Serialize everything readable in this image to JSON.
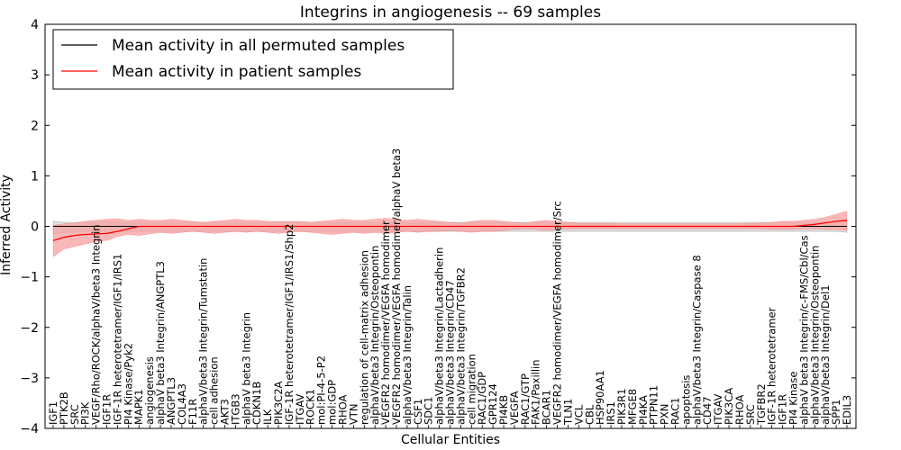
{
  "chart_data": {
    "type": "line",
    "title": "Integrins in angiogenesis -- 69 samples",
    "xlabel": "Cellular Entities",
    "ylabel": "Inferred Activity",
    "ylim": [
      -4,
      4
    ],
    "yticks": [
      "−4",
      "−3",
      "−2",
      "−1",
      "0",
      "1",
      "2",
      "3",
      "4"
    ],
    "legend_position": "top-left",
    "categories": [
      "IGF1",
      "PTK2B",
      "SRC",
      "PI3K",
      "VEGF/Rho/ROCK/alphaV/beta3 Integrin",
      "IGF1R",
      "IGF-1R heterotetramer/IGF1/IRS1",
      "PI4 Kinase/Pyk2",
      "MAPK1",
      "angiogenesis",
      "alphaV beta3 Integrin/ANGPTL3",
      "ANGPTL3",
      "COL4A3",
      "F11R",
      "alphaV/beta3 Integrin/Tumstatin",
      "cell adhesion",
      "AKT3",
      "ITGB3",
      "alphaV beta3 Integrin",
      "CDKN1B",
      "ILK",
      "PIK3C2A",
      "IGF-1R heterotetramer/IGF1/IRS1/Shp2",
      "ITGAV",
      "ROCK1",
      "mol:PI-4-5-P2",
      "mol:GDP",
      "RHOA",
      "VTN",
      "regulation of cell-matrix adhesion",
      "alphaV/beta3 Integrin/Osteopontin",
      "VEGFR2 homodimer/VEGFA homodimer",
      "VEGFR2 homodimer/VEGFA homodimer/alphaV beta3",
      "alphaV/beta3 Integrin/Talin",
      "CSF1",
      "SDC1",
      "alphaV/beta3 Integrin/Lactadherin",
      "alphaV/beta3 Integrin/CD47",
      "alphaV/beta3 Integrin/TGFBR2",
      "cell migration",
      "RAC1/GDP",
      "GPR124",
      "PI4KB",
      "VEGFA",
      "RAC1/GTP",
      "FAK1/Paxillin",
      "BCAR1",
      "VEGFR2 homodimer/VEGFA homodimer/Src",
      "TLN1",
      "VCL",
      "CBL",
      "HSP90AA1",
      "IRS1",
      "PIK3R1",
      "MFGE8",
      "PI4KA",
      "PTPN11",
      "PXN",
      "RAC1",
      "apoptosis",
      "alphaV/beta3 Integrin/Caspase 8",
      "CD47",
      "ITGAV",
      "PIK3CA",
      "RHOA",
      "SRC",
      "TGFBR2",
      "IGF-1R heterotetramer",
      "IGF1R",
      "PI4 Kinase",
      "alphaV beta3 Integrin/c-FMS/Cbl/Cas",
      "alphaV/beta3 Integrin/Osteopontin",
      "alphaV/beta3 Integrin/Del1",
      "SPP1",
      "EDIL3"
    ],
    "series": [
      {
        "name": "Mean activity in all permuted samples",
        "color": "#000000",
        "band_color": "#c8c8c8",
        "mean": [
          0.0,
          0.0,
          0.0,
          0.0,
          0.0,
          0.0,
          0.0,
          0.0,
          0.0,
          0.0,
          0.0,
          0.0,
          0.0,
          0.0,
          0.0,
          0.0,
          0.0,
          0.0,
          0.0,
          0.0,
          0.0,
          0.0,
          0.0,
          0.0,
          0.0,
          0.0,
          0.0,
          0.0,
          0.0,
          0.0,
          0.0,
          0.0,
          0.0,
          0.0,
          0.0,
          0.0,
          0.0,
          0.0,
          0.0,
          0.0,
          0.0,
          0.0,
          0.0,
          0.0,
          0.0,
          0.0,
          0.0,
          0.0,
          0.0,
          0.0,
          0.0,
          0.0,
          0.0,
          0.0,
          0.0,
          0.0,
          0.0,
          0.0,
          0.0,
          0.0,
          0.0,
          0.0,
          0.0,
          0.0,
          0.0,
          0.0,
          0.0,
          0.0,
          0.0,
          0.0,
          0.0,
          0.0,
          0.0,
          0.0,
          0.0
        ],
        "upper": [
          0.1,
          0.08,
          0.08,
          0.08,
          0.08,
          0.1,
          0.08,
          0.08,
          0.08,
          0.08,
          0.08,
          0.08,
          0.08,
          0.08,
          0.08,
          0.08,
          0.08,
          0.08,
          0.08,
          0.08,
          0.08,
          0.08,
          0.08,
          0.08,
          0.08,
          0.08,
          0.08,
          0.08,
          0.08,
          0.08,
          0.08,
          0.08,
          0.08,
          0.08,
          0.08,
          0.08,
          0.08,
          0.08,
          0.08,
          0.08,
          0.08,
          0.08,
          0.08,
          0.08,
          0.08,
          0.08,
          0.08,
          0.08,
          0.08,
          0.08,
          0.08,
          0.08,
          0.08,
          0.08,
          0.08,
          0.08,
          0.08,
          0.08,
          0.08,
          0.08,
          0.08,
          0.08,
          0.08,
          0.08,
          0.08,
          0.08,
          0.08,
          0.08,
          0.08,
          0.08,
          0.08,
          0.08,
          0.08,
          0.08,
          0.1
        ],
        "lower": [
          -0.15,
          -0.12,
          -0.12,
          -0.1,
          -0.1,
          -0.12,
          -0.1,
          -0.1,
          -0.1,
          -0.1,
          -0.1,
          -0.1,
          -0.1,
          -0.1,
          -0.1,
          -0.1,
          -0.1,
          -0.1,
          -0.1,
          -0.1,
          -0.1,
          -0.1,
          -0.1,
          -0.1,
          -0.1,
          -0.1,
          -0.1,
          -0.1,
          -0.1,
          -0.1,
          -0.1,
          -0.1,
          -0.1,
          -0.1,
          -0.1,
          -0.1,
          -0.1,
          -0.1,
          -0.1,
          -0.1,
          -0.1,
          -0.1,
          -0.1,
          -0.1,
          -0.1,
          -0.1,
          -0.1,
          -0.1,
          -0.1,
          -0.1,
          -0.1,
          -0.1,
          -0.1,
          -0.1,
          -0.1,
          -0.1,
          -0.1,
          -0.1,
          -0.1,
          -0.1,
          -0.1,
          -0.1,
          -0.1,
          -0.1,
          -0.1,
          -0.1,
          -0.1,
          -0.1,
          -0.1,
          -0.1,
          -0.1,
          -0.1,
          -0.1,
          -0.1,
          -0.12
        ]
      },
      {
        "name": "Mean activity in patient samples",
        "color": "#ff0000",
        "band_color": "#f7a0a0",
        "mean": [
          -0.28,
          -0.22,
          -0.18,
          -0.16,
          -0.15,
          -0.14,
          -0.1,
          -0.05,
          0.0,
          0.0,
          0.0,
          0.0,
          0.0,
          0.0,
          0.0,
          0.0,
          0.0,
          0.0,
          0.0,
          0.0,
          0.0,
          0.0,
          0.0,
          0.0,
          0.0,
          0.0,
          0.0,
          0.0,
          0.0,
          0.0,
          0.0,
          0.0,
          0.0,
          0.0,
          0.0,
          0.0,
          0.0,
          0.0,
          0.0,
          0.0,
          0.0,
          0.0,
          0.0,
          0.0,
          0.0,
          0.0,
          0.0,
          0.0,
          0.0,
          0.0,
          0.0,
          0.0,
          0.0,
          0.0,
          0.0,
          0.0,
          0.0,
          0.0,
          0.0,
          0.0,
          0.0,
          0.0,
          0.0,
          0.0,
          0.0,
          0.0,
          0.0,
          0.0,
          0.0,
          0.0,
          0.02,
          0.04,
          0.07,
          0.1,
          0.12
        ],
        "upper": [
          0.02,
          0.05,
          0.06,
          0.1,
          0.12,
          0.14,
          0.15,
          0.12,
          0.14,
          0.12,
          0.12,
          0.14,
          0.12,
          0.1,
          0.08,
          0.1,
          0.12,
          0.14,
          0.12,
          0.12,
          0.1,
          0.1,
          0.1,
          0.1,
          0.08,
          0.1,
          0.12,
          0.14,
          0.12,
          0.12,
          0.14,
          0.16,
          0.14,
          0.12,
          0.14,
          0.12,
          0.1,
          0.08,
          0.06,
          0.1,
          0.12,
          0.12,
          0.1,
          0.08,
          0.06,
          0.1,
          0.12,
          0.1,
          0.08,
          0.06,
          0.06,
          0.06,
          0.06,
          0.05,
          0.05,
          0.05,
          0.05,
          0.05,
          0.05,
          0.05,
          0.05,
          0.05,
          0.05,
          0.05,
          0.05,
          0.06,
          0.06,
          0.08,
          0.1,
          0.1,
          0.12,
          0.14,
          0.18,
          0.24,
          0.3
        ],
        "lower": [
          -0.6,
          -0.45,
          -0.4,
          -0.35,
          -0.3,
          -0.28,
          -0.2,
          -0.16,
          -0.18,
          -0.15,
          -0.12,
          -0.14,
          -0.12,
          -0.1,
          -0.12,
          -0.14,
          -0.12,
          -0.1,
          -0.12,
          -0.1,
          -0.12,
          -0.14,
          -0.12,
          -0.1,
          -0.12,
          -0.14,
          -0.16,
          -0.14,
          -0.12,
          -0.14,
          -0.12,
          -0.14,
          -0.12,
          -0.1,
          -0.12,
          -0.1,
          -0.1,
          -0.08,
          -0.1,
          -0.12,
          -0.1,
          -0.1,
          -0.08,
          -0.06,
          -0.05,
          -0.06,
          -0.08,
          -0.06,
          -0.05,
          -0.05,
          -0.05,
          -0.05,
          -0.05,
          -0.05,
          -0.05,
          -0.05,
          -0.05,
          -0.05,
          -0.05,
          -0.05,
          -0.05,
          -0.05,
          -0.05,
          -0.05,
          -0.05,
          -0.05,
          -0.05,
          -0.06,
          -0.06,
          -0.06,
          -0.05,
          -0.05,
          -0.06,
          -0.06,
          -0.08
        ]
      }
    ]
  }
}
